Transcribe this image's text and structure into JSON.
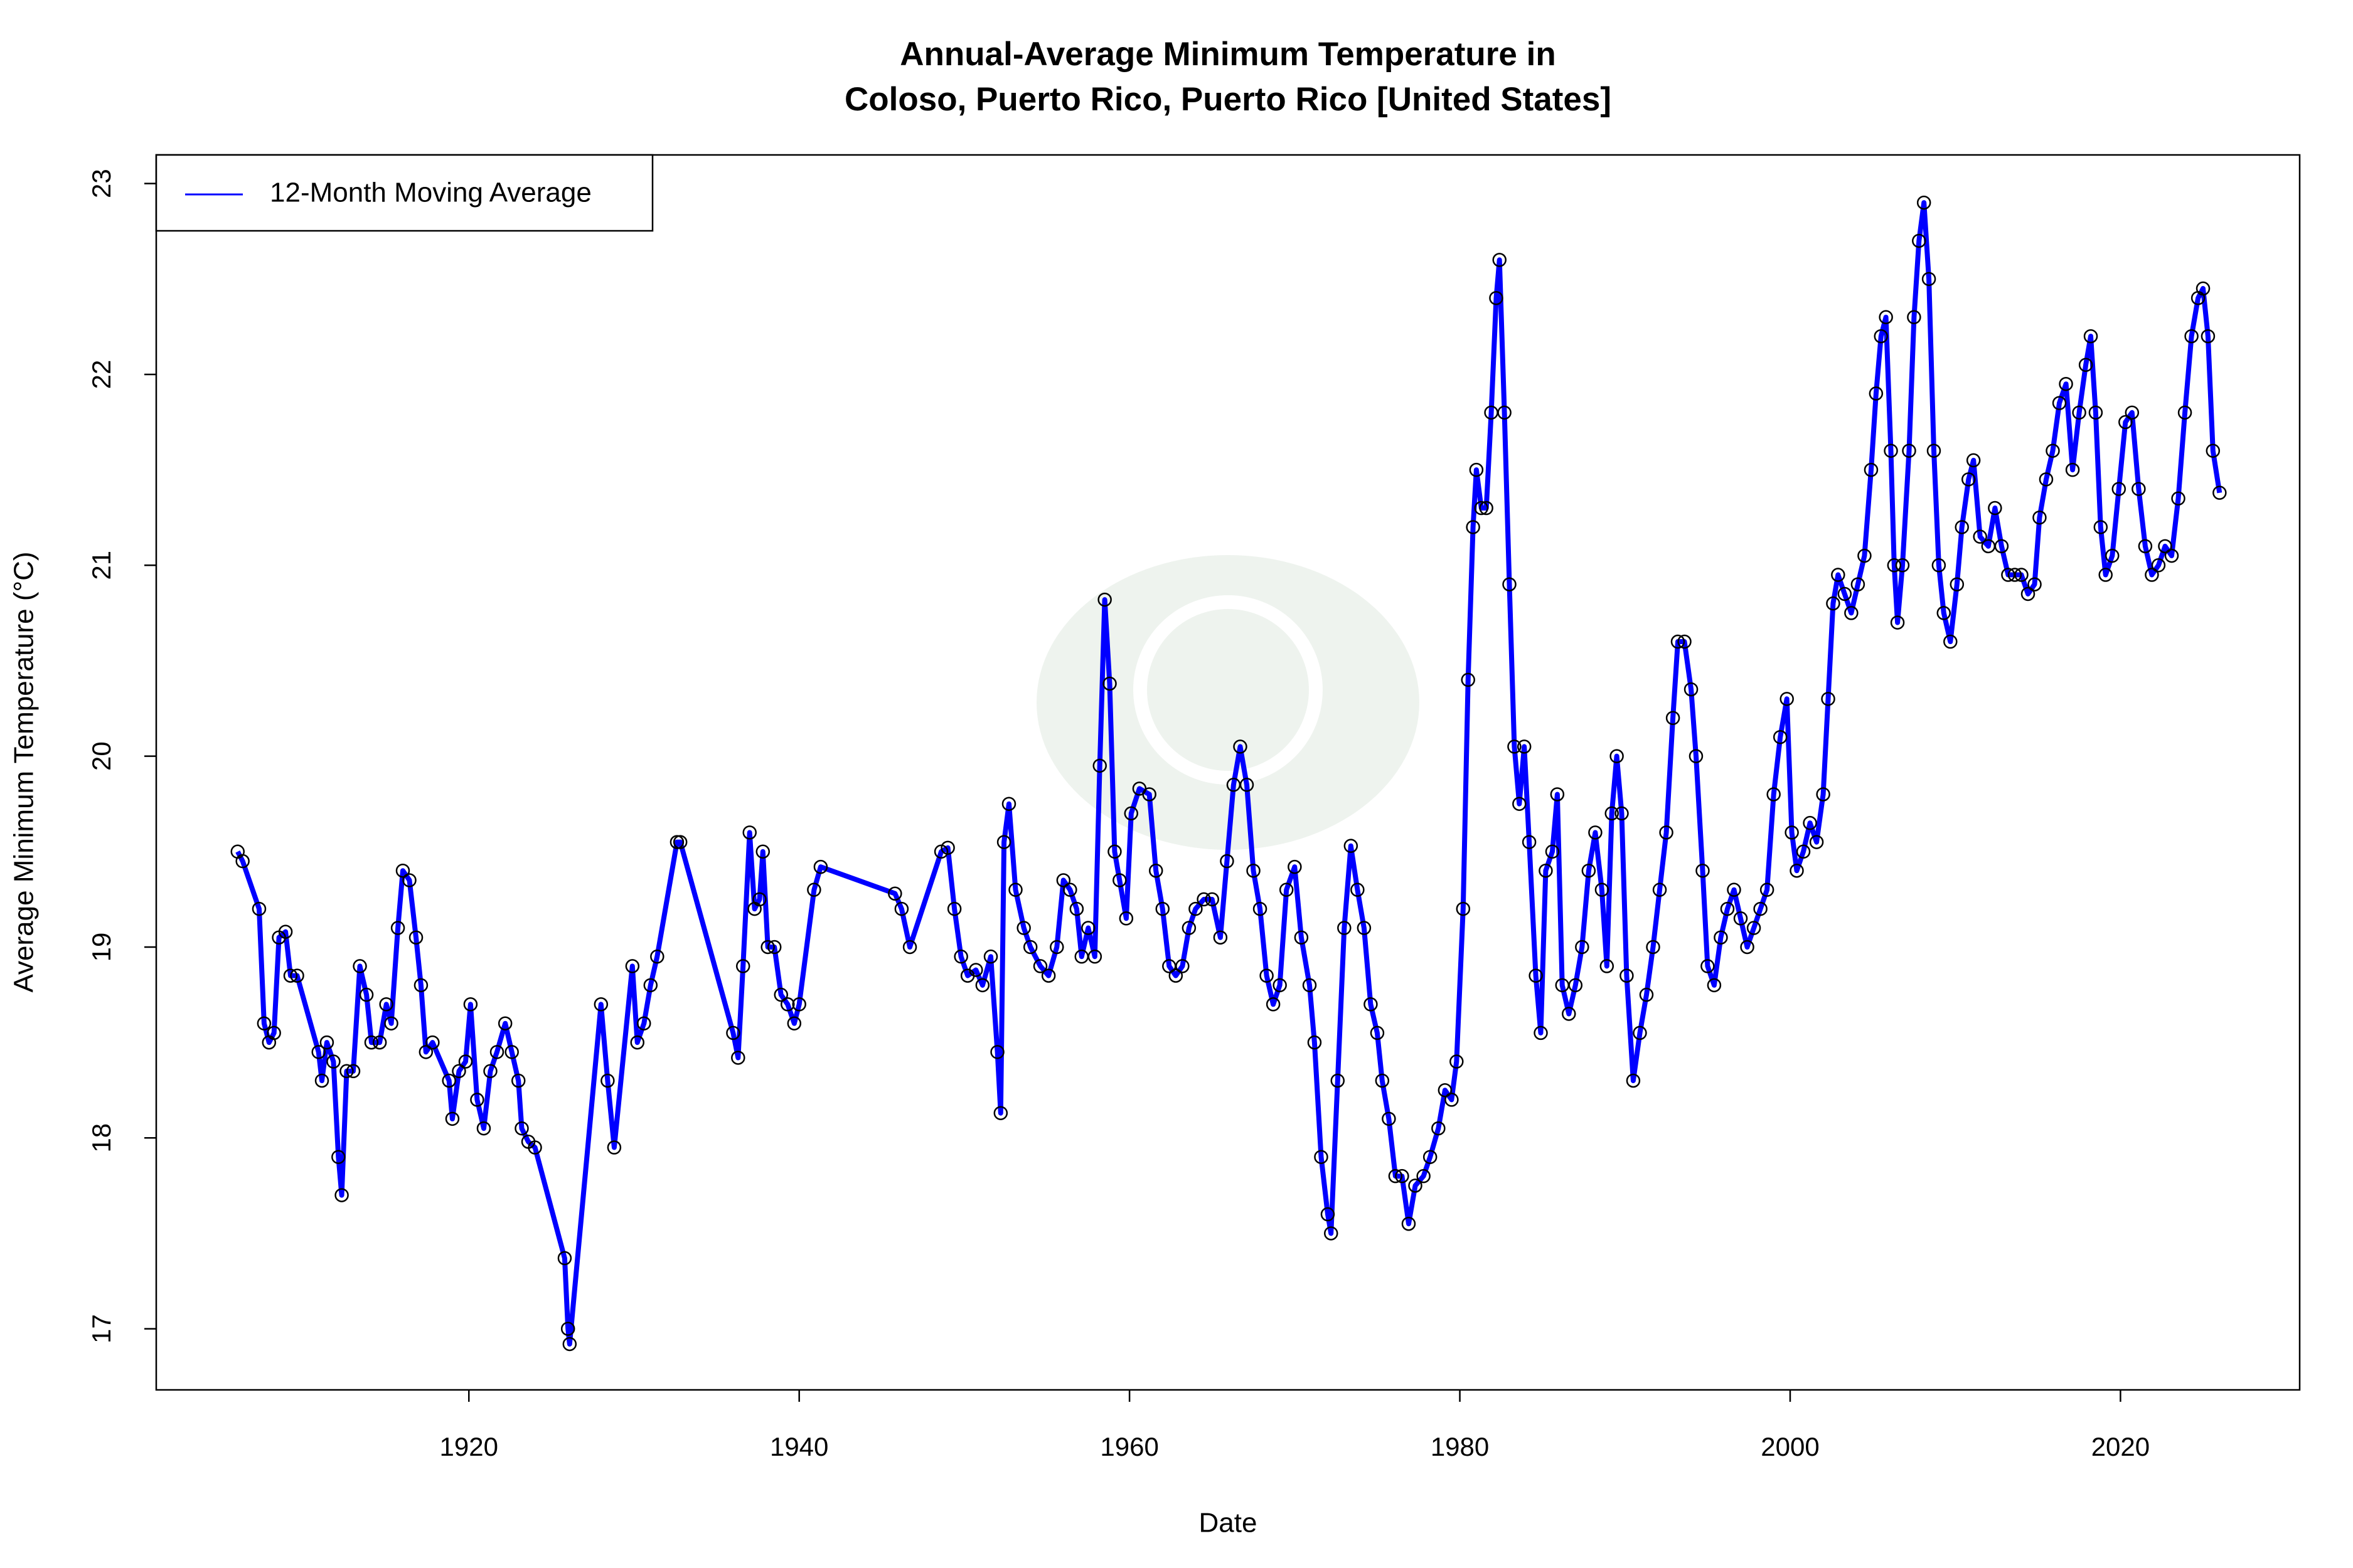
{
  "chart_data": {
    "type": "line",
    "title": [
      "Annual-Average Minimum Temperature in",
      "Coloso, Puerto Rico, Puerto Rico [United States]"
    ],
    "x_label": "Date",
    "y_label": "Average Minimum Temperature (°C)",
    "xlim": [
      1901.07,
      2030.85
    ],
    "ylim": [
      16.68,
      23.15
    ],
    "xticks": [
      1920,
      1940,
      1960,
      1980,
      2000,
      2020
    ],
    "yticks": [
      17,
      18,
      19,
      20,
      21,
      22,
      23
    ],
    "legend": "top-left",
    "markers": true,
    "x": [
      1906.0,
      1906.3,
      1907.3,
      1907.6,
      1907.9,
      1908.2,
      1908.5,
      1908.9,
      1909.2,
      1909.6,
      1910.9,
      1911.1,
      1911.4,
      1911.8,
      1912.1,
      1912.3,
      1912.6,
      1913.0,
      1913.4,
      1913.8,
      1914.1,
      1914.6,
      1915.0,
      1915.3,
      1915.7,
      1916.0,
      1916.4,
      1916.8,
      1917.1,
      1917.4,
      1917.8,
      1918.8,
      1919.0,
      1919.4,
      1919.8,
      1920.1,
      1920.5,
      1920.9,
      1921.3,
      1921.7,
      1922.2,
      1922.6,
      1923.0,
      1923.2,
      1923.6,
      1924.0,
      1925.8,
      1926.0,
      1926.1,
      1928.0,
      1928.4,
      1928.8,
      1929.9,
      1930.2,
      1930.6,
      1931.0,
      1931.4,
      1932.6,
      1932.8,
      1936.0,
      1936.3,
      1936.6,
      1937.0,
      1937.3,
      1937.6,
      1937.8,
      1938.1,
      1938.5,
      1938.9,
      1939.3,
      1939.7,
      1940.0,
      1940.9,
      1941.3,
      1945.8,
      1946.2,
      1946.7,
      1948.6,
      1949.0,
      1949.4,
      1949.8,
      1950.2,
      1950.7,
      1951.1,
      1951.6,
      1952.0,
      1952.2,
      1952.4,
      1952.7,
      1953.1,
      1953.6,
      1954.0,
      1954.6,
      1955.1,
      1955.6,
      1956.0,
      1956.4,
      1956.8,
      1957.1,
      1957.5,
      1957.9,
      1958.2,
      1958.5,
      1958.8,
      1959.1,
      1959.4,
      1959.8,
      1960.1,
      1960.6,
      1961.2,
      1961.6,
      1962.0,
      1962.4,
      1962.8,
      1963.2,
      1963.6,
      1964.0,
      1964.5,
      1965.0,
      1965.5,
      1965.9,
      1966.3,
      1966.7,
      1967.1,
      1967.5,
      1967.9,
      1968.3,
      1968.7,
      1969.1,
      1969.5,
      1970.0,
      1970.4,
      1970.9,
      1971.2,
      1971.6,
      1972.0,
      1972.2,
      1972.6,
      1973.0,
      1973.4,
      1973.8,
      1974.2,
      1974.6,
      1975.0,
      1975.3,
      1975.7,
      1976.1,
      1976.5,
      1976.9,
      1977.3,
      1977.8,
      1978.2,
      1978.7,
      1979.1,
      1979.5,
      1979.8,
      1980.2,
      1980.5,
      1980.8,
      1981.0,
      1981.3,
      1981.6,
      1981.9,
      1982.2,
      1982.4,
      1982.7,
      1983.0,
      1983.3,
      1983.6,
      1983.9,
      1984.2,
      1984.6,
      1984.9,
      1985.2,
      1985.6,
      1985.9,
      1986.2,
      1986.6,
      1987.0,
      1987.4,
      1987.8,
      1988.2,
      1988.6,
      1988.9,
      1989.2,
      1989.5,
      1989.8,
      1990.1,
      1990.5,
      1990.9,
      1991.3,
      1991.7,
      1992.1,
      1992.5,
      1992.9,
      1993.2,
      1993.6,
      1994.0,
      1994.3,
      1994.7,
      1995.0,
      1995.4,
      1995.8,
      1996.2,
      1996.6,
      1997.0,
      1997.4,
      1997.8,
      1998.2,
      1998.6,
      1999.0,
      1999.4,
      1999.8,
      2000.1,
      2000.4,
      2000.8,
      2001.2,
      2001.6,
      2002.0,
      2002.3,
      2002.6,
      2002.9,
      2003.3,
      2003.7,
      2004.1,
      2004.5,
      2004.9,
      2005.2,
      2005.5,
      2005.8,
      2006.1,
      2006.3,
      2006.5,
      2006.8,
      2007.2,
      2007.5,
      2007.8,
      2008.1,
      2008.4,
      2008.7,
      2009.0,
      2009.3,
      2009.7,
      2010.1,
      2010.4,
      2010.8,
      2011.1,
      2011.5,
      2012.0,
      2012.4,
      2012.8,
      2013.2,
      2013.6,
      2014.0,
      2014.4,
      2014.8,
      2015.1,
      2015.5,
      2015.9,
      2016.3,
      2016.7,
      2017.1,
      2017.5,
      2017.9,
      2018.2,
      2018.5,
      2018.8,
      2019.1,
      2019.5,
      2019.9,
      2020.3,
      2020.7,
      2021.1,
      2021.5,
      2021.9,
      2022.3,
      2022.7,
      2023.1,
      2023.5,
      2023.9,
      2024.3,
      2024.7,
      2025.0,
      2025.3,
      2025.6,
      2026.0
    ],
    "series": [
      {
        "name": "12-Month Moving Average",
        "color": "#0000ff",
        "marker_color": "#000000",
        "values": [
          19.5,
          19.45,
          19.2,
          18.6,
          18.5,
          18.55,
          19.05,
          19.08,
          18.85,
          18.85,
          18.45,
          18.3,
          18.5,
          18.4,
          17.9,
          17.7,
          18.35,
          18.35,
          18.9,
          18.75,
          18.5,
          18.5,
          18.7,
          18.6,
          19.1,
          19.4,
          19.35,
          19.05,
          18.8,
          18.45,
          18.5,
          18.3,
          18.1,
          18.35,
          18.4,
          18.7,
          18.2,
          18.05,
          18.35,
          18.45,
          18.6,
          18.45,
          18.3,
          18.05,
          17.98,
          17.95,
          17.37,
          17.0,
          16.92,
          18.7,
          18.3,
          17.95,
          18.9,
          18.5,
          18.6,
          18.8,
          18.95,
          19.55,
          19.55,
          18.55,
          18.42,
          18.9,
          19.6,
          19.2,
          19.25,
          19.5,
          19.0,
          19.0,
          18.75,
          18.7,
          18.6,
          18.7,
          19.3,
          19.42,
          19.28,
          19.2,
          19.0,
          19.5,
          19.52,
          19.2,
          18.95,
          18.85,
          18.88,
          18.8,
          18.95,
          18.45,
          18.13,
          19.55,
          19.75,
          19.3,
          19.1,
          19.0,
          18.9,
          18.85,
          19.0,
          19.35,
          19.3,
          19.2,
          18.95,
          19.1,
          18.95,
          19.95,
          20.82,
          20.38,
          19.5,
          19.35,
          19.15,
          19.7,
          19.83,
          19.8,
          19.4,
          19.2,
          18.9,
          18.85,
          18.9,
          19.1,
          19.2,
          19.25,
          19.25,
          19.05,
          19.45,
          19.85,
          20.05,
          19.85,
          19.4,
          19.2,
          18.85,
          18.7,
          18.8,
          19.3,
          19.42,
          19.05,
          18.8,
          18.5,
          17.9,
          17.6,
          17.5,
          18.3,
          19.1,
          19.53,
          19.3,
          19.1,
          18.7,
          18.55,
          18.3,
          18.1,
          17.8,
          17.8,
          17.55,
          17.75,
          17.8,
          17.9,
          18.05,
          18.25,
          18.2,
          18.4,
          19.2,
          20.4,
          21.2,
          21.5,
          21.3,
          21.3,
          21.8,
          22.4,
          22.6,
          21.8,
          20.9,
          20.05,
          19.75,
          20.05,
          19.55,
          18.85,
          18.55,
          19.4,
          19.5,
          19.8,
          18.8,
          18.65,
          18.8,
          19.0,
          19.4,
          19.6,
          19.3,
          18.9,
          19.7,
          20.0,
          19.7,
          18.85,
          18.3,
          18.55,
          18.75,
          19.0,
          19.3,
          19.6,
          20.2,
          20.6,
          20.6,
          20.35,
          20.0,
          19.4,
          18.9,
          18.8,
          19.05,
          19.2,
          19.3,
          19.15,
          19.0,
          19.1,
          19.2,
          19.3,
          19.8,
          20.1,
          20.3,
          19.6,
          19.4,
          19.5,
          19.65,
          19.55,
          19.8,
          20.3,
          20.8,
          20.95,
          20.85,
          20.75,
          20.9,
          21.05,
          21.5,
          21.9,
          22.2,
          22.3,
          21.6,
          21.0,
          20.7,
          21.0,
          21.6,
          22.3,
          22.7,
          22.9,
          22.5,
          21.6,
          21.0,
          20.75,
          20.6,
          20.9,
          21.2,
          21.45,
          21.55,
          21.15,
          21.1,
          21.3,
          21.1,
          20.95,
          20.95,
          20.95,
          20.85,
          20.9,
          21.25,
          21.45,
          21.6,
          21.85,
          21.95,
          21.5,
          21.8,
          22.05,
          22.2,
          21.8,
          21.2,
          20.95,
          21.05,
          21.4,
          21.75,
          21.8,
          21.4,
          21.1,
          20.95,
          21.0,
          21.1,
          21.05,
          21.35,
          21.8,
          22.2,
          22.4,
          22.45,
          22.2,
          21.6,
          21.38
        ]
      }
    ]
  }
}
